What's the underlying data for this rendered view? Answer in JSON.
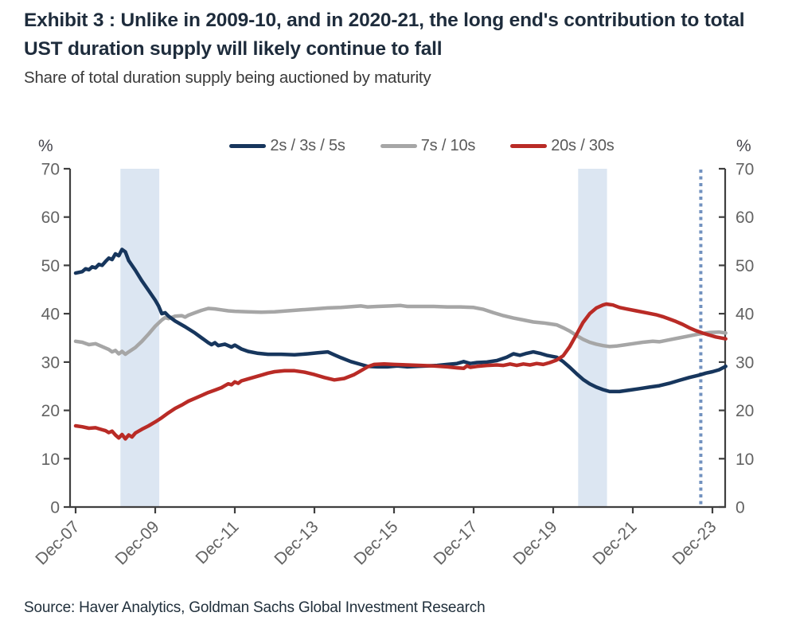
{
  "page": {
    "exhibit_title": "Exhibit 3 : Unlike in 2009-10, and in 2020-21, the long end's contribution to total UST duration supply will likely continue to fall",
    "subtitle": "Share of total duration supply being auctioned by maturity",
    "source": "Source: Haver Analytics, Goldman Sachs Global Investment Research"
  },
  "colors": {
    "navy": "#17365d",
    "gray": "#a6a6a6",
    "red": "#b92b26",
    "band": "#dce6f2",
    "dotted_line": "#7191bf",
    "axis": "#3f3f3f",
    "tick_label": "#636363",
    "title": "#1e2c3c"
  },
  "chart_data": {
    "type": "line",
    "title": "Share of total duration supply being auctioned by maturity",
    "y_axis": {
      "unit": "%",
      "min": 0,
      "max": 70,
      "ticks": [
        0,
        10,
        20,
        30,
        40,
        50,
        60,
        70
      ]
    },
    "x_axis": {
      "tick_labels": [
        "Dec-07",
        "Dec-09",
        "Dec-11",
        "Dec-13",
        "Dec-15",
        "Dec-17",
        "Dec-19",
        "Dec-21",
        "Dec-23"
      ],
      "months_per_tick": 24,
      "domain_months": [
        0,
        196
      ],
      "note": "x unit = months since Dec-2007"
    },
    "legend_position": "top-center",
    "grid": false,
    "shaded_bands": [
      {
        "period": "2009-10",
        "from_month": 13.5,
        "to_month": 25.2
      },
      {
        "period": "2020-21",
        "from_month": 151.5,
        "to_month": 160.2
      }
    ],
    "dotted_vline_month": 188.5,
    "series": [
      {
        "name": "2s / 3s / 5s",
        "color": "#17365d",
        "points": [
          [
            0,
            48.4
          ],
          [
            2,
            48.7
          ],
          [
            3,
            49.3
          ],
          [
            4,
            49.1
          ],
          [
            5,
            49.7
          ],
          [
            6,
            49.5
          ],
          [
            7,
            50.2
          ],
          [
            8,
            50.0
          ],
          [
            9,
            50.8
          ],
          [
            10,
            51.5
          ],
          [
            11,
            51.2
          ],
          [
            12,
            52.4
          ],
          [
            13,
            52.0
          ],
          [
            14,
            53.3
          ],
          [
            15,
            52.8
          ],
          [
            16,
            51.0
          ],
          [
            18,
            49.0
          ],
          [
            20,
            46.8
          ],
          [
            22,
            44.8
          ],
          [
            24,
            42.8
          ],
          [
            25,
            41.6
          ],
          [
            26,
            40.0
          ],
          [
            27,
            40.2
          ],
          [
            28,
            39.5
          ],
          [
            30,
            38.5
          ],
          [
            33,
            37.3
          ],
          [
            36,
            36.0
          ],
          [
            38,
            35.0
          ],
          [
            40,
            34.0
          ],
          [
            41,
            33.6
          ],
          [
            42,
            34.0
          ],
          [
            43,
            33.4
          ],
          [
            45,
            33.7
          ],
          [
            47,
            33.1
          ],
          [
            48,
            33.5
          ],
          [
            50,
            32.7
          ],
          [
            52,
            32.2
          ],
          [
            55,
            31.8
          ],
          [
            58,
            31.6
          ],
          [
            62,
            31.6
          ],
          [
            66,
            31.5
          ],
          [
            70,
            31.7
          ],
          [
            73,
            31.9
          ],
          [
            76,
            32.1
          ],
          [
            78,
            31.5
          ],
          [
            80,
            30.9
          ],
          [
            83,
            30.1
          ],
          [
            86,
            29.5
          ],
          [
            88,
            29.1
          ],
          [
            91,
            29.0
          ],
          [
            94,
            29.0
          ],
          [
            97,
            29.2
          ],
          [
            100,
            29.0
          ],
          [
            103,
            29.1
          ],
          [
            106,
            29.2
          ],
          [
            109,
            29.3
          ],
          [
            112,
            29.5
          ],
          [
            115,
            29.7
          ],
          [
            117,
            30.1
          ],
          [
            119,
            29.7
          ],
          [
            121,
            29.9
          ],
          [
            124,
            30.0
          ],
          [
            127,
            30.3
          ],
          [
            130,
            31.0
          ],
          [
            132,
            31.7
          ],
          [
            134,
            31.4
          ],
          [
            136,
            31.8
          ],
          [
            138,
            32.1
          ],
          [
            140,
            31.8
          ],
          [
            142,
            31.4
          ],
          [
            145,
            31.0
          ],
          [
            147,
            30.1
          ],
          [
            149,
            28.9
          ],
          [
            151,
            27.6
          ],
          [
            153,
            26.4
          ],
          [
            155,
            25.5
          ],
          [
            157,
            24.8
          ],
          [
            159,
            24.3
          ],
          [
            161,
            23.9
          ],
          [
            164,
            23.9
          ],
          [
            167,
            24.2
          ],
          [
            170,
            24.5
          ],
          [
            173,
            24.8
          ],
          [
            176,
            25.1
          ],
          [
            179,
            25.6
          ],
          [
            182,
            26.2
          ],
          [
            185,
            26.8
          ],
          [
            188,
            27.3
          ],
          [
            190,
            27.7
          ],
          [
            192,
            28.0
          ],
          [
            194,
            28.4
          ],
          [
            196,
            29.1
          ]
        ]
      },
      {
        "name": "7s / 10s",
        "color": "#a6a6a6",
        "points": [
          [
            0,
            34.3
          ],
          [
            2,
            34.1
          ],
          [
            4,
            33.6
          ],
          [
            6,
            33.8
          ],
          [
            8,
            33.2
          ],
          [
            10,
            32.6
          ],
          [
            11,
            32.1
          ],
          [
            12,
            32.4
          ],
          [
            13,
            31.7
          ],
          [
            14,
            32.2
          ],
          [
            15,
            31.6
          ],
          [
            16,
            32.1
          ],
          [
            18,
            33.0
          ],
          [
            20,
            34.3
          ],
          [
            22,
            35.8
          ],
          [
            24,
            37.4
          ],
          [
            26,
            38.7
          ],
          [
            27,
            39.2
          ],
          [
            28,
            39.0
          ],
          [
            30,
            39.5
          ],
          [
            32,
            39.6
          ],
          [
            33,
            39.3
          ],
          [
            34,
            39.7
          ],
          [
            36,
            40.2
          ],
          [
            38,
            40.7
          ],
          [
            40,
            41.1
          ],
          [
            42,
            41.0
          ],
          [
            44,
            40.8
          ],
          [
            46,
            40.6
          ],
          [
            48,
            40.5
          ],
          [
            52,
            40.4
          ],
          [
            56,
            40.3
          ],
          [
            60,
            40.4
          ],
          [
            64,
            40.6
          ],
          [
            68,
            40.8
          ],
          [
            72,
            41.0
          ],
          [
            76,
            41.2
          ],
          [
            80,
            41.3
          ],
          [
            84,
            41.5
          ],
          [
            86,
            41.6
          ],
          [
            88,
            41.4
          ],
          [
            91,
            41.5
          ],
          [
            95,
            41.6
          ],
          [
            98,
            41.7
          ],
          [
            100,
            41.5
          ],
          [
            104,
            41.5
          ],
          [
            108,
            41.5
          ],
          [
            112,
            41.4
          ],
          [
            116,
            41.4
          ],
          [
            120,
            41.3
          ],
          [
            123,
            40.9
          ],
          [
            126,
            40.2
          ],
          [
            129,
            39.6
          ],
          [
            132,
            39.1
          ],
          [
            135,
            38.7
          ],
          [
            138,
            38.3
          ],
          [
            141,
            38.1
          ],
          [
            143,
            37.9
          ],
          [
            145,
            37.7
          ],
          [
            147,
            37.1
          ],
          [
            149,
            36.4
          ],
          [
            151,
            35.5
          ],
          [
            153,
            34.7
          ],
          [
            155,
            34.1
          ],
          [
            157,
            33.7
          ],
          [
            159,
            33.4
          ],
          [
            161,
            33.2
          ],
          [
            163,
            33.3
          ],
          [
            165,
            33.5
          ],
          [
            168,
            33.8
          ],
          [
            171,
            34.1
          ],
          [
            174,
            34.3
          ],
          [
            176,
            34.2
          ],
          [
            179,
            34.6
          ],
          [
            182,
            35.0
          ],
          [
            185,
            35.4
          ],
          [
            188,
            35.8
          ],
          [
            191,
            36.1
          ],
          [
            194,
            36.2
          ],
          [
            196,
            36.0
          ]
        ]
      },
      {
        "name": "20s / 30s",
        "color": "#b92b26",
        "points": [
          [
            0,
            16.8
          ],
          [
            2,
            16.6
          ],
          [
            4,
            16.3
          ],
          [
            6,
            16.4
          ],
          [
            8,
            16.0
          ],
          [
            9,
            15.8
          ],
          [
            10,
            15.4
          ],
          [
            11,
            15.7
          ],
          [
            12,
            14.9
          ],
          [
            13,
            14.3
          ],
          [
            14,
            15.0
          ],
          [
            15,
            14.1
          ],
          [
            16,
            14.9
          ],
          [
            17,
            14.5
          ],
          [
            18,
            15.3
          ],
          [
            20,
            16.1
          ],
          [
            22,
            16.8
          ],
          [
            24,
            17.6
          ],
          [
            26,
            18.5
          ],
          [
            28,
            19.5
          ],
          [
            30,
            20.4
          ],
          [
            32,
            21.1
          ],
          [
            34,
            21.9
          ],
          [
            36,
            22.5
          ],
          [
            38,
            23.1
          ],
          [
            40,
            23.7
          ],
          [
            42,
            24.2
          ],
          [
            44,
            24.7
          ],
          [
            45,
            25.1
          ],
          [
            46,
            25.5
          ],
          [
            47,
            25.3
          ],
          [
            48,
            25.9
          ],
          [
            49,
            25.6
          ],
          [
            50,
            26.1
          ],
          [
            52,
            26.5
          ],
          [
            54,
            26.9
          ],
          [
            56,
            27.3
          ],
          [
            58,
            27.7
          ],
          [
            60,
            28.0
          ],
          [
            63,
            28.2
          ],
          [
            66,
            28.2
          ],
          [
            69,
            27.9
          ],
          [
            72,
            27.4
          ],
          [
            75,
            26.8
          ],
          [
            78,
            26.3
          ],
          [
            81,
            26.6
          ],
          [
            84,
            27.4
          ],
          [
            86,
            28.2
          ],
          [
            88,
            29.0
          ],
          [
            90,
            29.5
          ],
          [
            93,
            29.6
          ],
          [
            96,
            29.5
          ],
          [
            100,
            29.4
          ],
          [
            104,
            29.3
          ],
          [
            108,
            29.2
          ],
          [
            112,
            29.0
          ],
          [
            115,
            28.8
          ],
          [
            117,
            28.7
          ],
          [
            118,
            29.2
          ],
          [
            119,
            28.9
          ],
          [
            121,
            29.1
          ],
          [
            124,
            29.3
          ],
          [
            127,
            29.4
          ],
          [
            129,
            29.3
          ],
          [
            131,
            29.6
          ],
          [
            133,
            29.3
          ],
          [
            135,
            29.6
          ],
          [
            137,
            29.4
          ],
          [
            139,
            29.7
          ],
          [
            141,
            29.5
          ],
          [
            143,
            29.9
          ],
          [
            145,
            30.4
          ],
          [
            147,
            31.3
          ],
          [
            149,
            33.2
          ],
          [
            151,
            35.7
          ],
          [
            153,
            38.2
          ],
          [
            155,
            40.0
          ],
          [
            157,
            41.2
          ],
          [
            159,
            41.8
          ],
          [
            160,
            42.0
          ],
          [
            162,
            41.8
          ],
          [
            164,
            41.3
          ],
          [
            166,
            41.0
          ],
          [
            169,
            40.6
          ],
          [
            172,
            40.2
          ],
          [
            175,
            39.8
          ],
          [
            177,
            39.4
          ],
          [
            179,
            38.9
          ],
          [
            181,
            38.4
          ],
          [
            183,
            37.8
          ],
          [
            185,
            37.1
          ],
          [
            187,
            36.5
          ],
          [
            189,
            36.0
          ],
          [
            191,
            35.6
          ],
          [
            193,
            35.2
          ],
          [
            196,
            34.8
          ]
        ]
      }
    ]
  }
}
